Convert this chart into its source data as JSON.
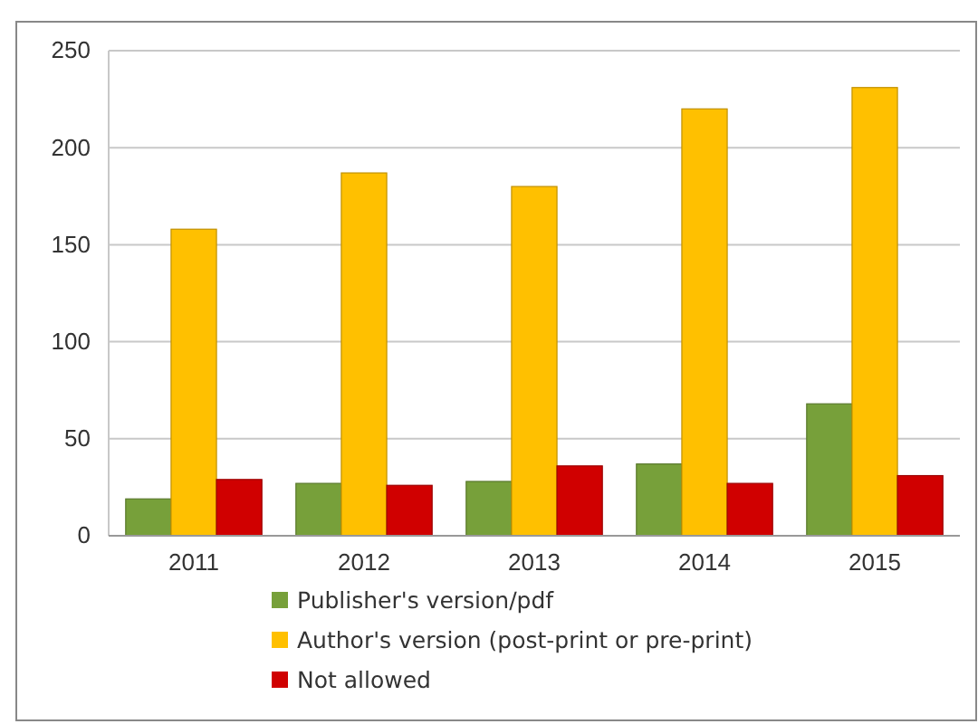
{
  "chart_data": {
    "type": "bar",
    "categories": [
      "2011",
      "2012",
      "2013",
      "2014",
      "2015"
    ],
    "series": [
      {
        "name": "Publisher's version/pdf",
        "color": "#77a03a",
        "values": [
          19,
          27,
          28,
          37,
          68
        ]
      },
      {
        "name": "Author's version (post-print or pre-print)",
        "color": "#ffc000",
        "values": [
          158,
          187,
          180,
          220,
          231
        ]
      },
      {
        "name": "Not allowed",
        "color": "#d00000",
        "values": [
          29,
          26,
          36,
          27,
          31
        ]
      }
    ],
    "ylim": [
      0,
      250
    ],
    "yticks": [
      0,
      50,
      100,
      150,
      200,
      250
    ],
    "grid": "y",
    "legend": "bottom"
  }
}
